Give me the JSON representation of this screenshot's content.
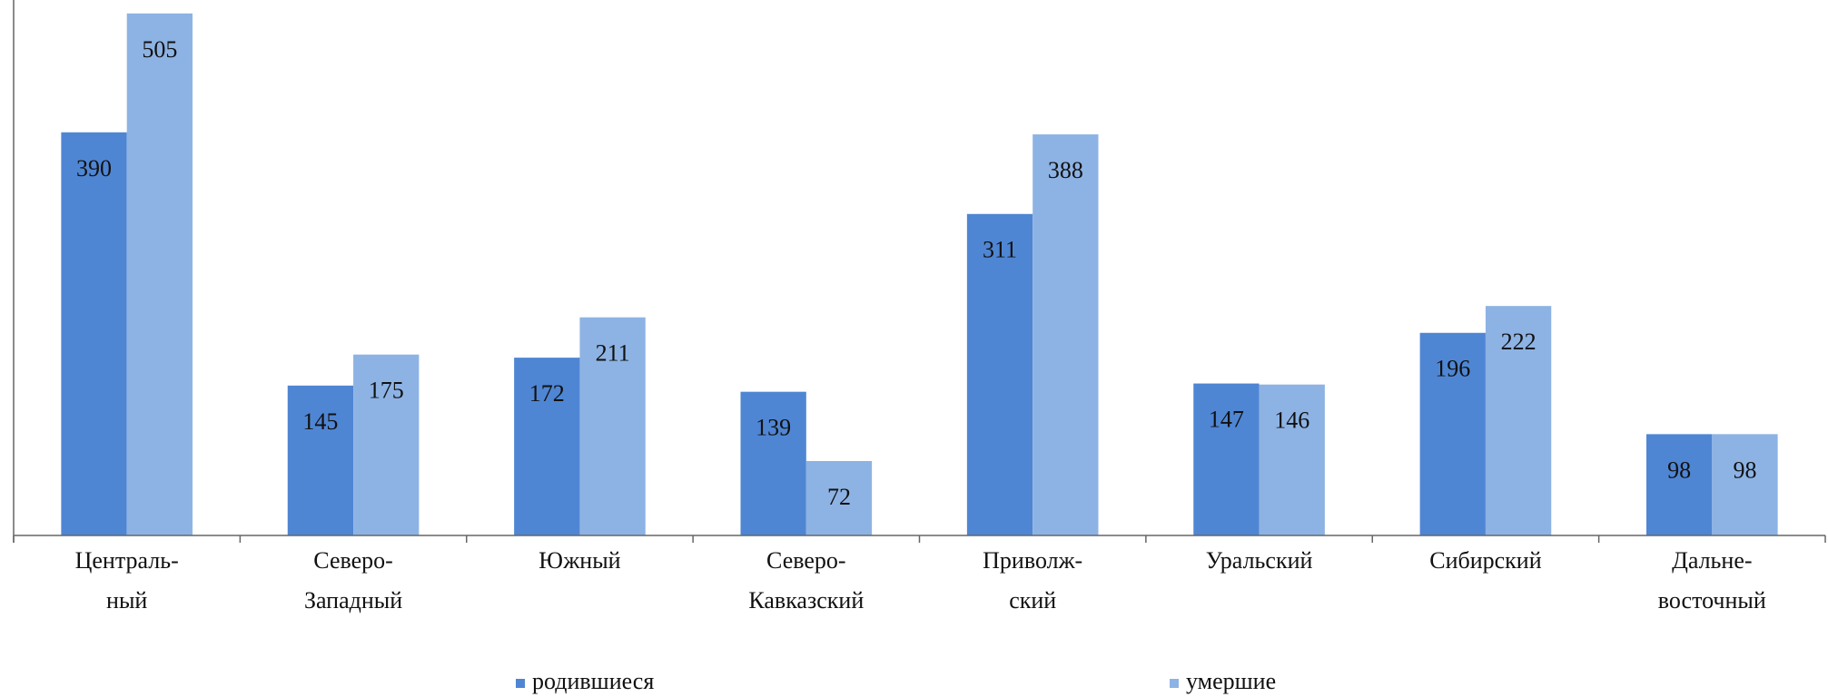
{
  "chart_data": {
    "type": "bar",
    "categories": [
      "Централь-\nный",
      "Северо-\nЗападный",
      "Южный",
      "Северо-\nКавказский",
      "Приволж-\nский",
      "Уральский",
      "Сибирский",
      "Дальне-\nвосточный"
    ],
    "series": [
      {
        "name": "родившиеся",
        "color": "#4f86d3",
        "values": [
          390,
          145,
          172,
          139,
          311,
          147,
          196,
          98
        ]
      },
      {
        "name": "умершие",
        "color": "#8db3e4",
        "values": [
          505,
          175,
          211,
          72,
          388,
          146,
          222,
          98
        ]
      }
    ],
    "ylim": [
      0,
      518
    ]
  }
}
